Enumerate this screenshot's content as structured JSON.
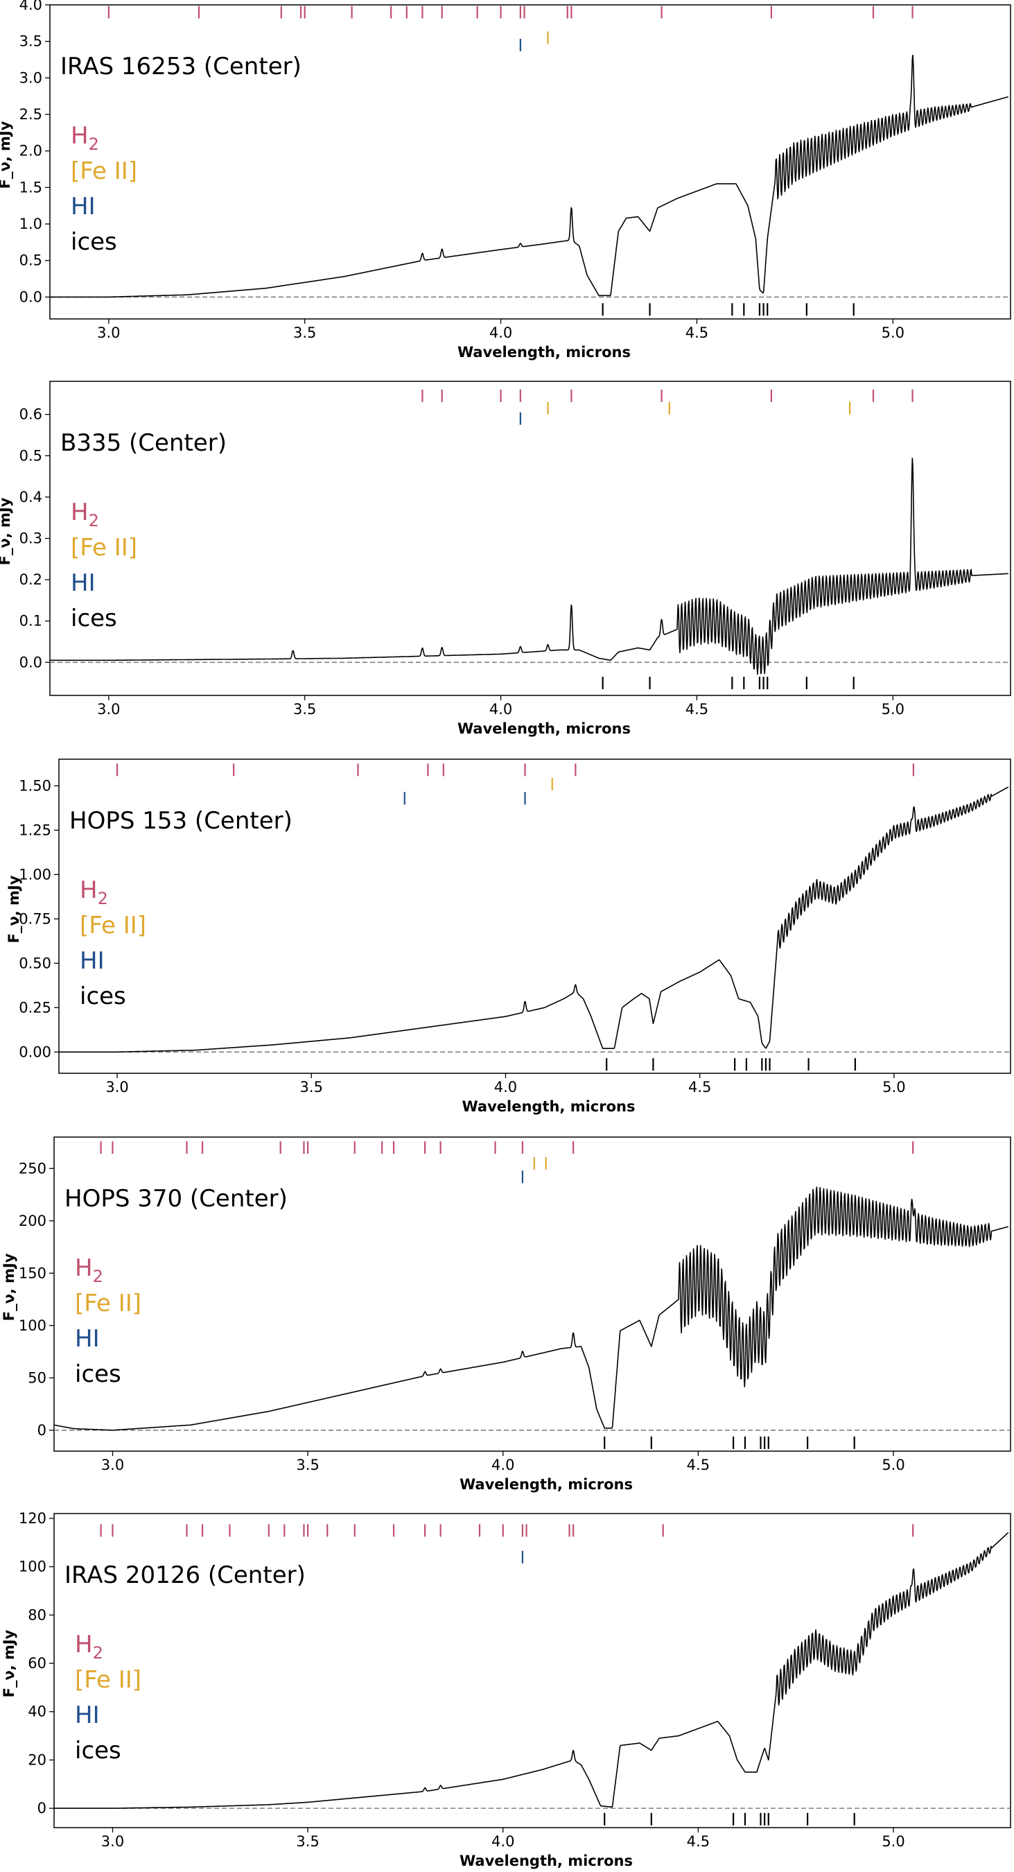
{
  "colors": {
    "H2": "#c0506e",
    "FeII": "#e0a82e",
    "HI": "#1f4e8c",
    "ices": "#000000",
    "spectrum": "#000000",
    "zero_line": "#808080"
  },
  "chart_data": [
    {
      "type": "line",
      "title": "IRAS 16253 (Center)",
      "xlabel": "Wavelength, microns",
      "ylabel": "F_ν, mJy",
      "xlim": [
        2.85,
        5.3
      ],
      "ylim": [
        -0.3,
        4.0
      ],
      "xticks": [
        3.0,
        3.5,
        4.0,
        4.5,
        5.0
      ],
      "xtick_labels": [
        "3.0",
        "3.5",
        "4.0",
        "4.5",
        "5.0"
      ],
      "yticks": [
        0.0,
        0.5,
        1.0,
        1.5,
        2.0,
        2.5,
        3.0,
        3.5,
        4.0
      ],
      "ytick_labels": [
        "0.0",
        "0.5",
        "1.0",
        "1.5",
        "2.0",
        "2.5",
        "3.0",
        "3.5",
        "4.0"
      ],
      "zero_line": 0,
      "legend": [
        {
          "key": "H2",
          "label": "H",
          "sub": "2"
        },
        {
          "key": "FeII",
          "label": "[Fe II]",
          "sub": ""
        },
        {
          "key": "HI",
          "label": "HI",
          "sub": ""
        },
        {
          "key": "ices",
          "label": "ices",
          "sub": ""
        }
      ],
      "line_markers": {
        "H2": [
          3.0,
          3.23,
          3.44,
          3.49,
          3.5,
          3.62,
          3.72,
          3.76,
          3.8,
          3.85,
          3.94,
          4.0,
          4.05,
          4.06,
          4.17,
          4.18,
          4.41,
          4.69,
          4.95,
          5.05
        ],
        "FeII": [
          4.12
        ],
        "HI": [
          4.05
        ],
        "ices": [
          4.26,
          4.38,
          4.59,
          4.62,
          4.66,
          4.67,
          4.68,
          4.78,
          4.9
        ]
      },
      "marker_rows": {
        "H2": 3.9,
        "FeII": 3.55,
        "HI": 3.45,
        "ices": -0.17
      },
      "spectrum": {
        "x": [
          2.85,
          3.0,
          3.2,
          3.4,
          3.6,
          3.8,
          4.0,
          4.1,
          4.18,
          4.2,
          4.22,
          4.25,
          4.28,
          4.3,
          4.32,
          4.35,
          4.38,
          4.4,
          4.45,
          4.5,
          4.55,
          4.6,
          4.63,
          4.65,
          4.66,
          4.67,
          4.68,
          4.7,
          4.75,
          4.8,
          4.9,
          5.0,
          5.1,
          5.2,
          5.3
        ],
        "y": [
          0.0,
          0.0,
          0.03,
          0.12,
          0.28,
          0.5,
          0.65,
          0.72,
          0.78,
          0.7,
          0.3,
          0.02,
          0.02,
          0.9,
          1.08,
          1.1,
          0.9,
          1.22,
          1.35,
          1.45,
          1.55,
          1.55,
          1.25,
          0.8,
          0.1,
          0.05,
          0.8,
          1.6,
          1.85,
          1.95,
          2.15,
          2.35,
          2.5,
          2.6,
          2.75
        ]
      },
      "ripple": {
        "start": 4.7,
        "end": 5.2,
        "period": 0.009,
        "amplitude": [
          0.3,
          0.05
        ]
      },
      "peaks": [
        {
          "x": 3.8,
          "h": 0.1
        },
        {
          "x": 3.85,
          "h": 0.12
        },
        {
          "x": 4.05,
          "h": 0.05
        },
        {
          "x": 4.18,
          "h": 0.45
        },
        {
          "x": 5.05,
          "h": 0.95
        }
      ]
    },
    {
      "type": "line",
      "title": "B335 (Center)",
      "xlabel": "Wavelength, microns",
      "ylabel": "F_ν, mJy",
      "xlim": [
        2.85,
        5.3
      ],
      "ylim": [
        -0.08,
        0.68
      ],
      "xticks": [
        3.0,
        3.5,
        4.0,
        4.5,
        5.0
      ],
      "xtick_labels": [
        "3.0",
        "3.5",
        "4.0",
        "4.5",
        "5.0"
      ],
      "yticks": [
        0.0,
        0.1,
        0.2,
        0.3,
        0.4,
        0.5,
        0.6
      ],
      "ytick_labels": [
        "0.0",
        "0.1",
        "0.2",
        "0.3",
        "0.4",
        "0.5",
        "0.6"
      ],
      "zero_line": 0,
      "legend": [
        {
          "key": "H2",
          "label": "H",
          "sub": "2"
        },
        {
          "key": "FeII",
          "label": "[Fe II]",
          "sub": ""
        },
        {
          "key": "HI",
          "label": "HI",
          "sub": ""
        },
        {
          "key": "ices",
          "label": "ices",
          "sub": ""
        }
      ],
      "line_markers": {
        "H2": [
          3.8,
          3.85,
          4.0,
          4.05,
          4.18,
          4.41,
          4.69,
          4.95,
          5.05
        ],
        "FeII": [
          4.12,
          4.43,
          4.89
        ],
        "HI": [
          4.05
        ],
        "ices": [
          4.26,
          4.38,
          4.59,
          4.62,
          4.66,
          4.67,
          4.68,
          4.78,
          4.9
        ]
      },
      "marker_rows": {
        "H2": 0.645,
        "FeII": 0.615,
        "HI": 0.59,
        "ices": -0.05
      },
      "spectrum": {
        "x": [
          2.85,
          3.0,
          3.4,
          3.6,
          3.8,
          4.0,
          4.15,
          4.2,
          4.25,
          4.28,
          4.3,
          4.35,
          4.38,
          4.4,
          4.45,
          4.5,
          4.55,
          4.6,
          4.63,
          4.65,
          4.67,
          4.68,
          4.7,
          4.8,
          4.9,
          5.0,
          5.1,
          5.2,
          5.3
        ],
        "y": [
          0.005,
          0.005,
          0.008,
          0.01,
          0.015,
          0.02,
          0.03,
          0.03,
          0.01,
          0.005,
          0.025,
          0.035,
          0.03,
          0.06,
          0.08,
          0.1,
          0.1,
          0.07,
          0.06,
          0.02,
          0.015,
          0.03,
          0.12,
          0.17,
          0.18,
          0.19,
          0.2,
          0.21,
          0.215
        ]
      },
      "ripple": {
        "start": 4.45,
        "end": 5.2,
        "period": 0.009,
        "amplitude": [
          0.06,
          0.015
        ]
      },
      "peaks": [
        {
          "x": 3.47,
          "h": 0.02
        },
        {
          "x": 3.8,
          "h": 0.02
        },
        {
          "x": 3.85,
          "h": 0.02
        },
        {
          "x": 4.05,
          "h": 0.015
        },
        {
          "x": 4.12,
          "h": 0.015
        },
        {
          "x": 4.18,
          "h": 0.11
        },
        {
          "x": 4.41,
          "h": 0.04
        },
        {
          "x": 5.05,
          "h": 0.32
        }
      ]
    },
    {
      "type": "line",
      "title": "HOPS 153 (Center)",
      "xlabel": "Wavelength, microns",
      "ylabel": "F_ν, mJy",
      "xlim": [
        2.85,
        5.3
      ],
      "ylim": [
        -0.12,
        1.65
      ],
      "xticks": [
        3.0,
        3.5,
        4.0,
        4.5,
        5.0
      ],
      "xtick_labels": [
        "3.0",
        "3.5",
        "4.0",
        "4.5",
        "5.0"
      ],
      "yticks": [
        0.0,
        0.25,
        0.5,
        0.75,
        1.0,
        1.25,
        1.5
      ],
      "ytick_labels": [
        "0.00",
        "0.25",
        "0.50",
        "0.75",
        "1.00",
        "1.25",
        "1.50"
      ],
      "zero_line": 0,
      "legend": [
        {
          "key": "H2",
          "label": "H",
          "sub": "2"
        },
        {
          "key": "FeII",
          "label": "[Fe II]",
          "sub": ""
        },
        {
          "key": "HI",
          "label": "HI",
          "sub": ""
        },
        {
          "key": "ices",
          "label": "ices",
          "sub": ""
        }
      ],
      "line_markers": {
        "H2": [
          3.0,
          3.3,
          3.62,
          3.8,
          3.84,
          4.05,
          4.18,
          5.05
        ],
        "FeII": [
          4.12
        ],
        "HI": [
          3.74,
          4.05
        ],
        "ices": [
          4.26,
          4.38,
          4.59,
          4.62,
          4.66,
          4.67,
          4.68,
          4.78,
          4.9
        ]
      },
      "marker_rows": {
        "H2": 1.59,
        "FeII": 1.51,
        "HI": 1.43,
        "ices": -0.07
      },
      "spectrum": {
        "x": [
          2.85,
          3.0,
          3.2,
          3.4,
          3.6,
          3.8,
          4.0,
          4.1,
          4.15,
          4.18,
          4.2,
          4.22,
          4.25,
          4.28,
          4.3,
          4.33,
          4.35,
          4.37,
          4.38,
          4.4,
          4.45,
          4.5,
          4.55,
          4.58,
          4.6,
          4.63,
          4.65,
          4.66,
          4.67,
          4.68,
          4.7,
          4.75,
          4.8,
          4.85,
          4.9,
          4.95,
          5.0,
          5.1,
          5.2,
          5.3
        ],
        "y": [
          0.0,
          0.0,
          0.01,
          0.04,
          0.08,
          0.14,
          0.2,
          0.25,
          0.3,
          0.34,
          0.3,
          0.2,
          0.02,
          0.02,
          0.25,
          0.3,
          0.33,
          0.3,
          0.16,
          0.34,
          0.4,
          0.45,
          0.52,
          0.43,
          0.3,
          0.28,
          0.2,
          0.05,
          0.02,
          0.06,
          0.62,
          0.8,
          0.92,
          0.88,
          0.98,
          1.12,
          1.24,
          1.3,
          1.38,
          1.5
        ]
      },
      "ripple": {
        "start": 4.7,
        "end": 5.25,
        "period": 0.009,
        "amplitude": [
          0.06,
          0.02
        ]
      },
      "peaks": [
        {
          "x": 4.05,
          "h": 0.06
        },
        {
          "x": 4.18,
          "h": 0.04
        },
        {
          "x": 5.05,
          "h": 0.12
        }
      ]
    },
    {
      "type": "line",
      "title": "HOPS 370 (Center)",
      "xlabel": "Wavelength, microns",
      "ylabel": "F_ν, mJy",
      "xlim": [
        2.85,
        5.3
      ],
      "ylim": [
        -20,
        280
      ],
      "xticks": [
        3.0,
        3.5,
        4.0,
        4.5,
        5.0
      ],
      "xtick_labels": [
        "3.0",
        "3.5",
        "4.0",
        "4.5",
        "5.0"
      ],
      "yticks": [
        0,
        50,
        100,
        150,
        200,
        250
      ],
      "ytick_labels": [
        "0",
        "50",
        "100",
        "150",
        "200",
        "250"
      ],
      "zero_line": 0,
      "legend": [
        {
          "key": "H2",
          "label": "H",
          "sub": "2"
        },
        {
          "key": "FeII",
          "label": "[Fe II]",
          "sub": ""
        },
        {
          "key": "HI",
          "label": "HI",
          "sub": ""
        },
        {
          "key": "ices",
          "label": "ices",
          "sub": ""
        }
      ],
      "line_markers": {
        "H2": [
          2.97,
          3.0,
          3.19,
          3.23,
          3.43,
          3.49,
          3.5,
          3.62,
          3.69,
          3.72,
          3.8,
          3.84,
          3.98,
          4.05,
          4.18,
          5.05
        ],
        "FeII": [
          4.08,
          4.11
        ],
        "HI": [
          4.05
        ],
        "ices": [
          4.26,
          4.38,
          4.59,
          4.62,
          4.66,
          4.67,
          4.68,
          4.78,
          4.9
        ]
      },
      "marker_rows": {
        "H2": 270,
        "FeII": 255,
        "HI": 242,
        "ices": -12
      },
      "spectrum": {
        "x": [
          2.85,
          2.9,
          3.0,
          3.2,
          3.4,
          3.6,
          3.8,
          4.0,
          4.15,
          4.2,
          4.22,
          4.24,
          4.26,
          4.28,
          4.3,
          4.35,
          4.38,
          4.4,
          4.45,
          4.5,
          4.55,
          4.58,
          4.6,
          4.62,
          4.65,
          4.67,
          4.7,
          4.75,
          4.8,
          4.9,
          5.0,
          5.1,
          5.2,
          5.3
        ],
        "y": [
          5.0,
          1.5,
          0.0,
          5.0,
          18.0,
          35.0,
          52.0,
          65.0,
          78.0,
          80.0,
          60.0,
          20.0,
          2.0,
          2.0,
          95.0,
          105.0,
          80.0,
          110.0,
          125.0,
          145.0,
          135.0,
          100.0,
          82.0,
          70.0,
          95.0,
          85.0,
          160.0,
          185.0,
          210.0,
          205.0,
          198.0,
          190.0,
          185.0,
          195.0
        ]
      },
      "ripple": {
        "start": 4.45,
        "end": 5.25,
        "period": 0.009,
        "amplitude": [
          35,
          8
        ]
      },
      "peaks": [
        {
          "x": 3.8,
          "h": 4
        },
        {
          "x": 3.84,
          "h": 4
        },
        {
          "x": 4.05,
          "h": 6
        },
        {
          "x": 4.18,
          "h": 14
        },
        {
          "x": 5.05,
          "h": 28
        }
      ]
    },
    {
      "type": "line",
      "title": "IRAS 20126 (Center)",
      "xlabel": "Wavelength, microns",
      "ylabel": "F_ν, mJy",
      "xlim": [
        2.85,
        5.3
      ],
      "ylim": [
        -8,
        122
      ],
      "xticks": [
        3.0,
        3.5,
        4.0,
        4.5,
        5.0
      ],
      "xtick_labels": [
        "3.0",
        "3.5",
        "4.0",
        "4.5",
        "5.0"
      ],
      "yticks": [
        0,
        20,
        40,
        60,
        80,
        100,
        120
      ],
      "ytick_labels": [
        "0",
        "20",
        "40",
        "60",
        "80",
        "100",
        "120"
      ],
      "zero_line": 0,
      "legend": [
        {
          "key": "H2",
          "label": "H",
          "sub": "2"
        },
        {
          "key": "FeII",
          "label": "[Fe II]",
          "sub": ""
        },
        {
          "key": "HI",
          "label": "HI",
          "sub": ""
        },
        {
          "key": "ices",
          "label": "ices",
          "sub": ""
        }
      ],
      "line_markers": {
        "H2": [
          2.97,
          3.0,
          3.19,
          3.23,
          3.3,
          3.4,
          3.44,
          3.49,
          3.5,
          3.55,
          3.62,
          3.72,
          3.8,
          3.84,
          3.94,
          4.0,
          4.05,
          4.06,
          4.17,
          4.18,
          4.41,
          5.05
        ],
        "FeII": [],
        "HI": [
          4.05
        ],
        "ices": [
          4.26,
          4.38,
          4.59,
          4.62,
          4.66,
          4.67,
          4.68,
          4.78,
          4.9
        ]
      },
      "marker_rows": {
        "H2": 115,
        "FeII": 109,
        "HI": 104,
        "ices": -4.5
      },
      "spectrum": {
        "x": [
          2.85,
          3.0,
          3.2,
          3.4,
          3.5,
          3.6,
          3.8,
          4.0,
          4.1,
          4.18,
          4.2,
          4.22,
          4.25,
          4.28,
          4.3,
          4.35,
          4.38,
          4.4,
          4.45,
          4.5,
          4.55,
          4.58,
          4.6,
          4.62,
          4.65,
          4.67,
          4.68,
          4.7,
          4.75,
          4.8,
          4.85,
          4.9,
          4.95,
          5.0,
          5.1,
          5.2,
          5.3
        ],
        "y": [
          0.0,
          0.0,
          0.5,
          1.5,
          2.5,
          4.0,
          7.0,
          12.0,
          16.0,
          20.0,
          18.0,
          12.0,
          1.0,
          0.5,
          26.0,
          27.0,
          24.0,
          29.0,
          30.0,
          33.0,
          36.0,
          30.0,
          20.0,
          15.0,
          15.0,
          25.0,
          20.0,
          48.0,
          60.0,
          68.0,
          62.0,
          60.0,
          78.0,
          84.0,
          92.0,
          100.0,
          115.0
        ]
      },
      "ripple": {
        "start": 4.7,
        "end": 5.25,
        "period": 0.009,
        "amplitude": [
          7,
          1.5
        ]
      },
      "peaks": [
        {
          "x": 3.8,
          "h": 1.5
        },
        {
          "x": 3.84,
          "h": 1.5
        },
        {
          "x": 4.18,
          "h": 4
        },
        {
          "x": 5.05,
          "h": 12
        }
      ]
    }
  ]
}
